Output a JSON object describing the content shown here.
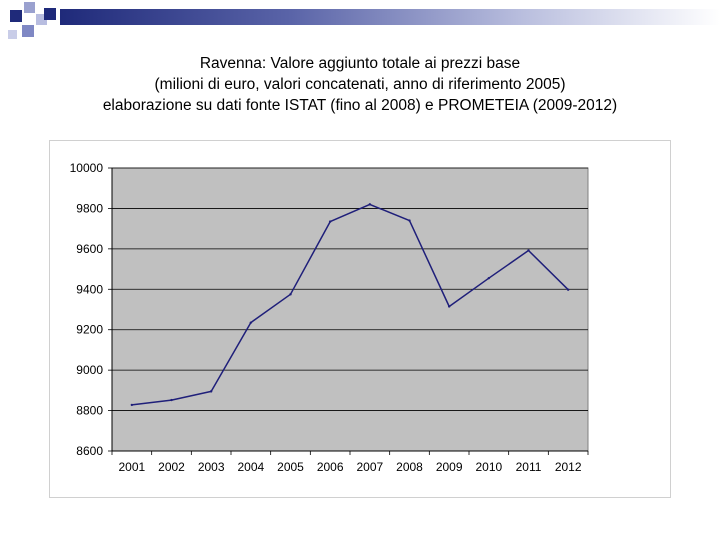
{
  "slide": {
    "title_lines": [
      "Ravenna: Valore aggiunto totale ai prezzi base",
      "(milioni di euro, valori concatenati, anno di riferimento 2005)",
      "elaborazione su dati fonte ISTAT (fino al 2008) e PROMETEIA (2009-2012)"
    ],
    "colors": {
      "accent_dark": "#1f2a7a",
      "accent_light": "#7f88c4"
    }
  },
  "chart_data": {
    "type": "line",
    "categories": [
      "2001",
      "2002",
      "2003",
      "2004",
      "2005",
      "2006",
      "2007",
      "2008",
      "2009",
      "2010",
      "2011",
      "2012"
    ],
    "series": [
      {
        "values": [
          8828,
          8852,
          8895,
          9235,
          9375,
          9735,
          9820,
          9740,
          9315,
          9455,
          9592,
          9398
        ],
        "color": "#1f1f7a"
      }
    ],
    "ylim": [
      8600,
      10000
    ],
    "yticks": [
      8600,
      8800,
      9000,
      9200,
      9400,
      9600,
      9800,
      10000
    ],
    "grid": true,
    "plot_background": "#c0c0c0",
    "legend": "none"
  }
}
